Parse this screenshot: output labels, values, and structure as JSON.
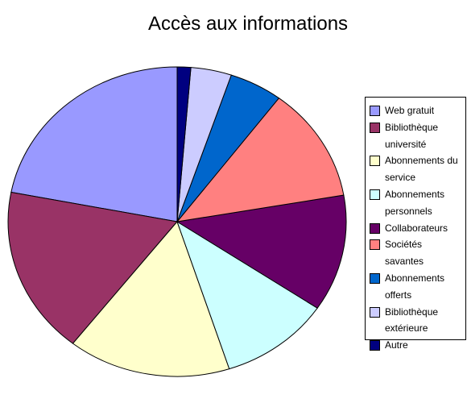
{
  "chart_data": {
    "type": "pie",
    "title": "Accès aux informations",
    "categories": [
      "Web gratuit",
      "Bibliothèque université",
      "Abonnements du service",
      "Abonnements personnels",
      "Collaborateurs",
      "Sociétés savantes",
      "Abonnements offerts",
      "Bibliothèque extérieure",
      "Autre"
    ],
    "values": [
      22,
      17.5,
      15.6,
      10.6,
      12.2,
      12,
      5.1,
      3.9,
      1.3
    ],
    "colors": [
      "#9999ff",
      "#993366",
      "#ffffcc",
      "#ccffff",
      "#660066",
      "#ff8080",
      "#0066cc",
      "#ccccff",
      "#000080"
    ],
    "legend": "right"
  }
}
